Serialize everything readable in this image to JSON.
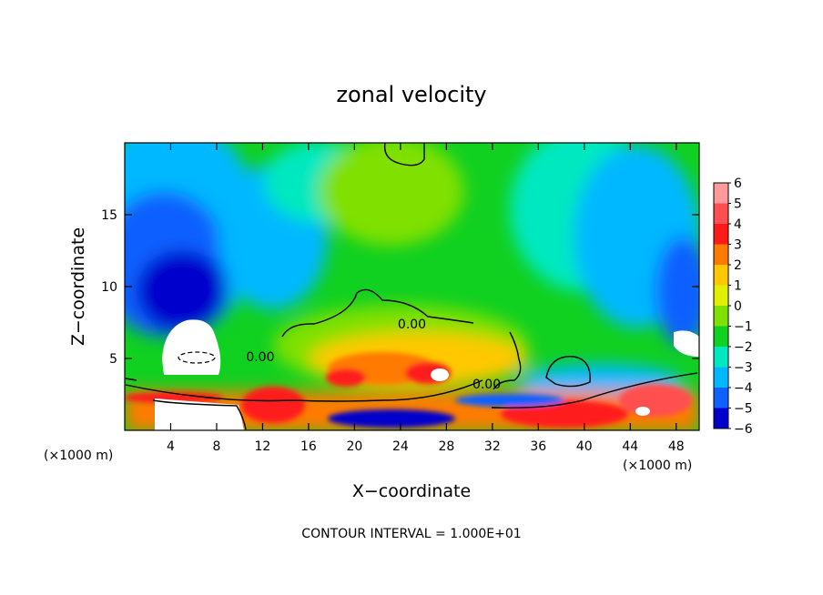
{
  "chart_data": {
    "type": "heatmap",
    "title": "zonal velocity",
    "xlabel": "X−coordinate",
    "ylabel": "Z−coordinate",
    "x_unit_left": "(×1000 m)",
    "x_unit_right": "(×1000 m)",
    "footer": "CONTOUR INTERVAL = 1.000E+01",
    "xlim": [
      0,
      50
    ],
    "ylim": [
      0,
      20
    ],
    "x_ticks": [
      {
        "value": 4,
        "label": "4"
      },
      {
        "value": 8,
        "label": "8"
      },
      {
        "value": 12,
        "label": "12"
      },
      {
        "value": 16,
        "label": "16"
      },
      {
        "value": 20,
        "label": "20"
      },
      {
        "value": 24,
        "label": "24"
      },
      {
        "value": 28,
        "label": "28"
      },
      {
        "value": 32,
        "label": "32"
      },
      {
        "value": 36,
        "label": "36"
      },
      {
        "value": 40,
        "label": "40"
      },
      {
        "value": 44,
        "label": "44"
      },
      {
        "value": 48,
        "label": "48"
      }
    ],
    "y_ticks": [
      {
        "value": 5,
        "label": "5"
      },
      {
        "value": 10,
        "label": "10"
      },
      {
        "value": 15,
        "label": "15"
      }
    ],
    "colorbar": {
      "levels": [
        6,
        5,
        4,
        3,
        2,
        1,
        0,
        -1,
        -2,
        -3,
        -4,
        -5,
        -6
      ],
      "labels": [
        "6",
        "5",
        "4",
        "3",
        "2",
        "1",
        "0",
        "−1",
        "−2",
        "−3",
        "−4",
        "−5",
        "−6"
      ],
      "colors": [
        "#ff9a9a",
        "#ff4f4f",
        "#ff1a1a",
        "#ff7a00",
        "#ffc800",
        "#e0f000",
        "#80e000",
        "#10d020",
        "#00e8c0",
        "#00b8ff",
        "#1060ff",
        "#0000cc",
        "#7000b0"
      ]
    },
    "contour_labels": [
      {
        "x": 25.0,
        "z": 7.1,
        "text": "0.00"
      },
      {
        "x": 11.8,
        "z": 4.8,
        "text": "0.00"
      },
      {
        "x": 31.5,
        "z": 2.9,
        "text": "0.00"
      }
    ]
  }
}
